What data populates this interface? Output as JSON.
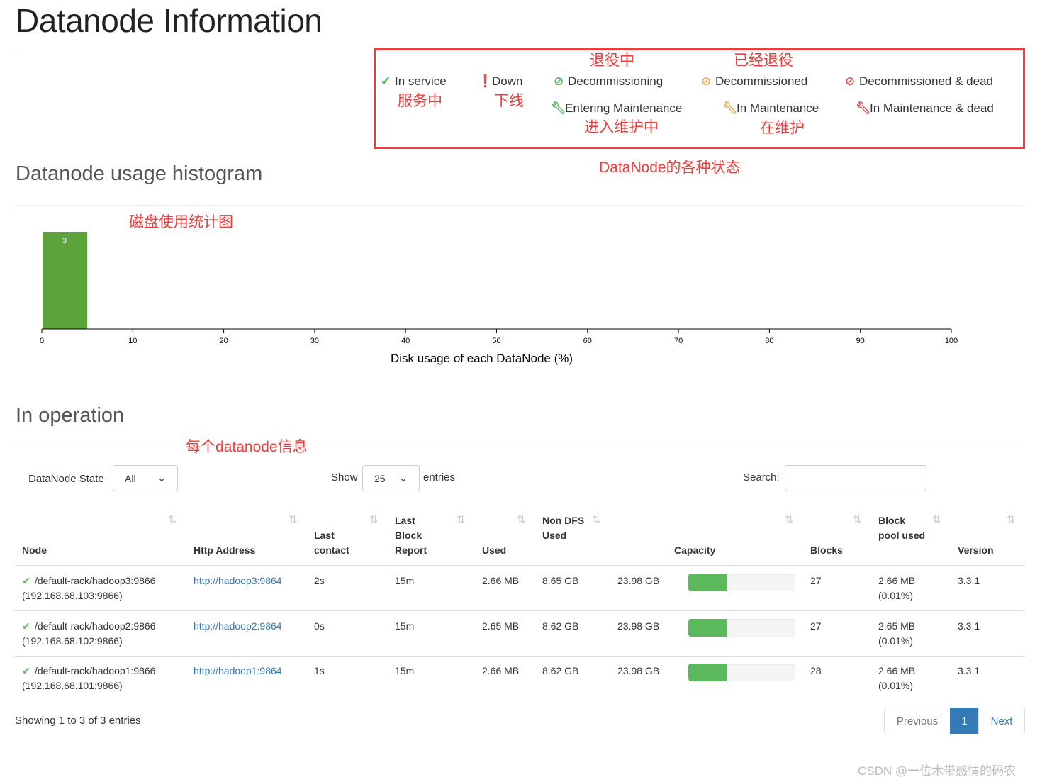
{
  "page_title": "Datanode Information",
  "legend": {
    "items": [
      {
        "label": "In service",
        "icon": "check-icon",
        "color": "#5cb85c"
      },
      {
        "label": "Down",
        "icon": "exclamation-circle-icon",
        "color": "#c7254e"
      },
      {
        "label": "Decommissioning",
        "icon": "ban-icon",
        "color": "#5cb85c"
      },
      {
        "label": "Decommissioned",
        "icon": "ban-icon",
        "color": "#f0ad4e"
      },
      {
        "label": "Decommissioned & dead",
        "icon": "ban-icon",
        "color": "#d9534f"
      },
      {
        "label": "Entering Maintenance",
        "icon": "wrench-icon",
        "color": "#5cb85c"
      },
      {
        "label": "In Maintenance",
        "icon": "wrench-icon",
        "color": "#f0ad4e"
      },
      {
        "label": "In Maintenance & dead",
        "icon": "wrench-icon",
        "color": "#d9534f"
      }
    ]
  },
  "annotations": {
    "in_service": "服务中",
    "down": "下线",
    "decommissioning": "退役中",
    "decommissioned": "已经退役",
    "entering_maintenance": "进入维护中",
    "in_maintenance": "在维护",
    "states": "DataNode的各种状态",
    "histogram": "磁盘使用统计图",
    "datanode_info": "每个datanode信息"
  },
  "histogram": {
    "heading": "Datanode usage histogram"
  },
  "chart_data": {
    "type": "bar",
    "xlabel": "Disk usage of each DataNode (%)",
    "xlim": [
      0,
      100
    ],
    "xticks": [
      0,
      10,
      20,
      30,
      40,
      50,
      60,
      70,
      80,
      90,
      100
    ],
    "bins": [
      {
        "x0": 0,
        "x1": 5,
        "count": 3
      }
    ],
    "color": "#5ca33c"
  },
  "operation": {
    "heading": "In operation",
    "state_label": "DataNode State",
    "state_value": "All",
    "show_label": "Show",
    "show_value": "25",
    "entries_label": "entries",
    "search_label": "Search:",
    "search_value": "",
    "columns": [
      "Node",
      "Http Address",
      "Last contact",
      "Last Block Report",
      "Used",
      "Non DFS Used",
      "Capacity",
      "Blocks",
      "Block pool used",
      "Version"
    ],
    "rows": [
      {
        "node": "/default-rack/hadoop3:9866",
        "ip": "(192.168.68.103:9866)",
        "http": "http://hadoop3:9864",
        "contact": "2s",
        "report": "15m",
        "used": "2.66 MB",
        "nondfs": "8.65 GB",
        "capacity": "23.98 GB",
        "usage_pct": 36,
        "blocks": "27",
        "bp": "2.66 MB",
        "bp_pct": "(0.01%)",
        "version": "3.3.1"
      },
      {
        "node": "/default-rack/hadoop2:9866",
        "ip": "(192.168.68.102:9866)",
        "http": "http://hadoop2:9864",
        "contact": "0s",
        "report": "15m",
        "used": "2.65 MB",
        "nondfs": "8.62 GB",
        "capacity": "23.98 GB",
        "usage_pct": 36,
        "blocks": "27",
        "bp": "2.65 MB",
        "bp_pct": "(0.01%)",
        "version": "3.3.1"
      },
      {
        "node": "/default-rack/hadoop1:9866",
        "ip": "(192.168.68.101:9866)",
        "http": "http://hadoop1:9864",
        "contact": "1s",
        "report": "15m",
        "used": "2.66 MB",
        "nondfs": "8.62 GB",
        "capacity": "23.98 GB",
        "usage_pct": 36,
        "blocks": "28",
        "bp": "2.66 MB",
        "bp_pct": "(0.01%)",
        "version": "3.3.1"
      }
    ],
    "info": "Showing 1 to 3 of 3 entries",
    "pagination": {
      "previous": "Previous",
      "current": "1",
      "next": "Next"
    }
  },
  "watermark": "CSDN @一位木带感情的码农"
}
